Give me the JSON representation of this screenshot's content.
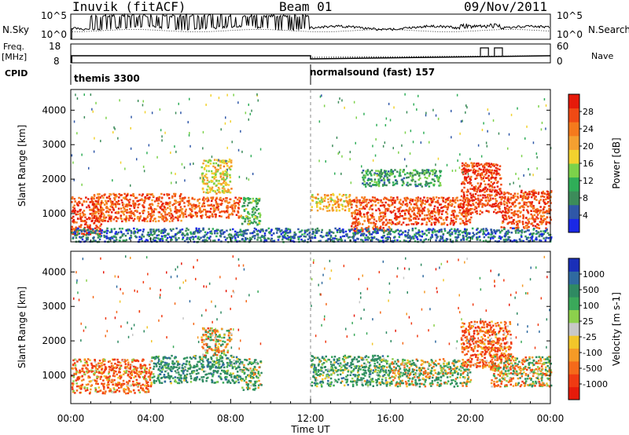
{
  "header": {
    "station": "Inuvik (fitACF)",
    "beam": "Beam 01",
    "date": "09/Nov/2011"
  },
  "summary": {
    "left_labels": {
      "sky": "N.Sky",
      "freq": "Freq.",
      "freq_unit": "[MHz]",
      "cpid": "CPID"
    },
    "right_labels": {
      "search": "N.Search",
      "nave": "Nave"
    },
    "nsky_ticks": [
      "10^5",
      "10^0"
    ],
    "nsearch_ticks": [
      "10^5",
      "10^0"
    ],
    "freq_ticks": [
      "18",
      "8"
    ],
    "nave_ticks": [
      "60",
      "0"
    ],
    "cpid_segments": [
      {
        "start_hour": 0,
        "label": "themis 3300"
      },
      {
        "start_hour": 12,
        "label": "normalsound (fast) 157"
      }
    ],
    "nave_pulses": [
      {
        "start_hour": 20.5,
        "end_hour": 20.9
      },
      {
        "start_hour": 21.2,
        "end_hour": 21.6
      }
    ]
  },
  "chart_data": [
    {
      "type": "heatmap",
      "title": "Power",
      "ylabel": "Slant Range [km]",
      "xlabel": "",
      "ylim": [
        180,
        4600
      ],
      "xlim": [
        0,
        24
      ],
      "yticks": [
        1000,
        2000,
        3000,
        4000
      ],
      "colorbar": {
        "label": "Power [dB]",
        "range": [
          0,
          32
        ],
        "ticks": [
          "4",
          "8",
          "12",
          "16",
          "20",
          "24",
          "28"
        ],
        "colors": [
          "#1a28e6",
          "#2f57a8",
          "#3c8c5a",
          "#2fae58",
          "#7cd24a",
          "#f2d22e",
          "#f4a030",
          "#f57a1c",
          "#f04a14",
          "#e61a0a"
        ]
      },
      "echo_regions": [
        {
          "t0": 0.0,
          "t1": 1.5,
          "r0": 400,
          "r1": 1500,
          "value": 28
        },
        {
          "t0": 1.0,
          "t1": 5.5,
          "r0": 800,
          "r1": 1600,
          "value": 26
        },
        {
          "t0": 5.5,
          "t1": 8.5,
          "r0": 900,
          "r1": 1500,
          "value": 26
        },
        {
          "t0": 6.5,
          "t1": 8.0,
          "r0": 1600,
          "r1": 2600,
          "value": 18
        },
        {
          "t0": 8.5,
          "t1": 9.5,
          "r0": 700,
          "r1": 1500,
          "value": 12
        },
        {
          "t0": 12.0,
          "t1": 14.0,
          "r0": 1100,
          "r1": 1600,
          "value": 20
        },
        {
          "t0": 14.0,
          "t1": 16.0,
          "r0": 500,
          "r1": 1500,
          "value": 26
        },
        {
          "t0": 16.0,
          "t1": 20.0,
          "r0": 700,
          "r1": 1500,
          "value": 27
        },
        {
          "t0": 19.5,
          "t1": 21.5,
          "r0": 1000,
          "r1": 2500,
          "value": 28
        },
        {
          "t0": 21.5,
          "t1": 24.0,
          "r0": 600,
          "r1": 1700,
          "value": 27
        },
        {
          "t0": 14.5,
          "t1": 18.5,
          "r0": 1800,
          "r1": 2300,
          "value": 10
        },
        {
          "t0": 0.0,
          "t1": 24.0,
          "r0": 200,
          "r1": 600,
          "value": 6
        }
      ]
    },
    {
      "type": "heatmap",
      "title": "Velocity",
      "ylabel": "Slant Range [km]",
      "xlabel": "Time UT",
      "ylim": [
        180,
        4600
      ],
      "xlim": [
        0,
        24
      ],
      "yticks": [
        1000,
        2000,
        3000,
        4000
      ],
      "xticks": [
        "00:00",
        "04:00",
        "08:00",
        "12:00",
        "16:00",
        "20:00",
        "00:00"
      ],
      "colorbar": {
        "label": "Velocity [m s-1]",
        "ticks": [
          "1000",
          "500",
          "100",
          "25",
          "-25",
          "-100",
          "-500",
          "-1000"
        ],
        "colors": [
          "#1a2fb8",
          "#2f6aa0",
          "#2f8a62",
          "#3aa85a",
          "#8cd04c",
          "#c8c8c8",
          "#f2c62a",
          "#f59a26",
          "#f56a1a",
          "#f03a12",
          "#e61a0a"
        ]
      },
      "echo_regions": [
        {
          "t0": 0.0,
          "t1": 4.0,
          "r0": 500,
          "r1": 1500,
          "value": -200
        },
        {
          "t0": 4.0,
          "t1": 8.5,
          "r0": 800,
          "r1": 1600,
          "value": 300
        },
        {
          "t0": 6.5,
          "t1": 8.0,
          "r0": 1600,
          "r1": 2400,
          "value": 0
        },
        {
          "t0": 8.5,
          "t1": 9.5,
          "r0": 600,
          "r1": 1500,
          "value": 150
        },
        {
          "t0": 12.0,
          "t1": 16.0,
          "r0": 700,
          "r1": 1600,
          "value": 250
        },
        {
          "t0": 16.0,
          "t1": 20.0,
          "r0": 700,
          "r1": 1500,
          "value": 80
        },
        {
          "t0": 19.5,
          "t1": 22.0,
          "r0": 1200,
          "r1": 2600,
          "value": -250
        },
        {
          "t0": 21.0,
          "t1": 24.0,
          "r0": 700,
          "r1": 1600,
          "value": 0
        }
      ]
    }
  ]
}
